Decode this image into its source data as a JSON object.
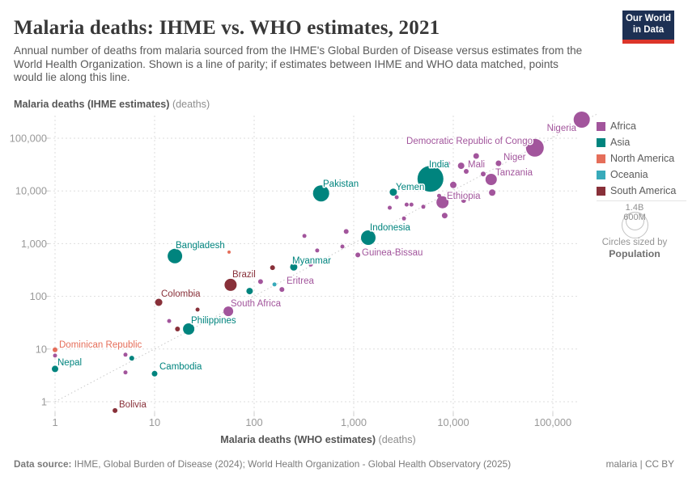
{
  "header": {
    "title": "Malaria deaths: IHME vs. WHO estimates, 2021",
    "subtitle": "Annual number of deaths from malaria sourced from the IHME's Global Burden of Disease versus estimates from the World Health Organization. Shown is a line of parity; if estimates between IHME and WHO data matched, points would lie along this line.",
    "logo": {
      "line1": "Our World",
      "line2": "in Data"
    }
  },
  "chart_data": {
    "type": "scatter",
    "title": "Malaria deaths: IHME vs. WHO estimates, 2021",
    "xlabel": "Malaria deaths (WHO estimates)",
    "xlabel_unit": "(deaths)",
    "ylabel": "Malaria deaths (IHME estimates)",
    "ylabel_unit": "(deaths)",
    "xscale": "log",
    "yscale": "log",
    "xlim": [
      1,
      300000
    ],
    "ylim": [
      0.6,
      300000
    ],
    "grid": true,
    "parity_line": true,
    "x_ticks": {
      "values": [
        1,
        10,
        100,
        1000,
        10000,
        100000
      ],
      "labels": [
        "1",
        "10",
        "100",
        "1,000",
        "10,000",
        "100,000"
      ]
    },
    "y_ticks": {
      "values": [
        1,
        10,
        100,
        1000,
        10000,
        100000
      ],
      "labels": [
        "1",
        "10",
        "100",
        "1,000",
        "10,000",
        "100,000"
      ]
    },
    "series": [
      {
        "name": "Africa",
        "color": "#a2559c",
        "points": [
          {
            "country": "Nigeria",
            "who": 195000,
            "ihme": 225000,
            "r": 10,
            "lbl": [
              712,
              162,
              "end",
              11.5
            ]
          },
          {
            "country": "Democratic Republic of Congo",
            "who": 66000,
            "ihme": 66000,
            "r": 11,
            "lbl": [
              658,
              178,
              "end",
              11.5
            ]
          },
          {
            "country": "Niger",
            "who": 28500,
            "ihme": 33500,
            "r": 3.5,
            "lbl": [
              622,
              198,
              "start",
              11.5
            ]
          },
          {
            "country": "Mali",
            "who": 12000,
            "ihme": 30000,
            "r": 4,
            "lbl": [
              578,
              207,
              "start",
              11.5
            ]
          },
          {
            "country": "Tanzania",
            "who": 24000,
            "ihme": 16500,
            "r": 7,
            "lbl": [
              612,
              217,
              "start",
              11.5
            ]
          },
          {
            "country": "Ethiopia",
            "who": 7800,
            "ihme": 6100,
            "r": 7.5,
            "lbl": [
              552,
              246,
              "start",
              11.5
            ]
          },
          {
            "country": "Guinea-Bissau",
            "who": 1100,
            "ihme": 610,
            "r": 3,
            "lbl": [
              447,
              316,
              "start",
              11.5
            ]
          },
          {
            "country": "Eritrea",
            "who": 190,
            "ihme": 135,
            "r": 3,
            "lbl": [
              354,
              351,
              "start",
              11.5
            ]
          },
          {
            "country": "South Africa",
            "who": 55,
            "ihme": 52,
            "r": 6,
            "lbl": [
              285,
              379,
              "start",
              11.5
            ]
          },
          {
            "who": 17000,
            "ihme": 46000,
            "r": 3.5
          },
          {
            "who": 8800,
            "ihme": 33000,
            "r": 3
          },
          {
            "who": 10000,
            "ihme": 13000,
            "r": 4
          },
          {
            "who": 13500,
            "ihme": 23500,
            "r": 3
          },
          {
            "who": 20000,
            "ihme": 21000,
            "r": 3
          },
          {
            "who": 24600,
            "ihme": 9300,
            "r": 4
          },
          {
            "who": 12700,
            "ihme": 6600,
            "r": 3
          },
          {
            "who": 7200,
            "ihme": 8100,
            "r": 2.5
          },
          {
            "who": 8200,
            "ihme": 3400,
            "r": 3.5
          },
          {
            "who": 2300,
            "ihme": 4800,
            "r": 2.5
          },
          {
            "who": 3400,
            "ihme": 5500,
            "r": 2.5
          },
          {
            "who": 3800,
            "ihme": 5500,
            "r": 2.5
          },
          {
            "who": 5000,
            "ihme": 5000,
            "r": 2.5
          },
          {
            "who": 3200,
            "ihme": 3000,
            "r": 2.5
          },
          {
            "who": 2700,
            "ihme": 7600,
            "r": 2.5
          },
          {
            "who": 840,
            "ihme": 1700,
            "r": 3
          },
          {
            "who": 320,
            "ihme": 1400,
            "r": 2.5
          },
          {
            "who": 430,
            "ihme": 740,
            "r": 2.5
          },
          {
            "who": 770,
            "ihme": 880,
            "r": 2.5
          },
          {
            "who": 530,
            "ihme": 500,
            "r": 2.5
          },
          {
            "who": 370,
            "ihme": 400,
            "r": 2.5
          },
          {
            "who": 116,
            "ihme": 190,
            "r": 3
          },
          {
            "who": 14,
            "ihme": 34,
            "r": 2.5
          },
          {
            "who": 5.1,
            "ihme": 7.8,
            "r": 2.5
          },
          {
            "who": 5.1,
            "ihme": 3.6,
            "r": 2.5
          },
          {
            "who": 1,
            "ihme": 7.5,
            "r": 2.5
          }
        ]
      },
      {
        "name": "Asia",
        "color": "#00847e",
        "points": [
          {
            "country": "India",
            "who": 5900,
            "ihme": 17000,
            "r": 16,
            "lbl": [
              530,
              207,
              "start",
              17
            ]
          },
          {
            "country": "Yemen",
            "who": 2500,
            "ihme": 9500,
            "r": 4.5,
            "lbl": [
              489,
              235,
              "start",
              11.5
            ]
          },
          {
            "country": "Pakistan",
            "who": 470,
            "ihme": 9000,
            "r": 10,
            "lbl": [
              399,
              231,
              "start",
              11.5
            ]
          },
          {
            "country": "Indonesia",
            "who": 1400,
            "ihme": 1300,
            "r": 9,
            "lbl": [
              457,
              285,
              "start",
              11.5
            ]
          },
          {
            "country": "Bangladesh",
            "who": 16,
            "ihme": 580,
            "r": 9,
            "lbl": [
              217,
              307,
              "start",
              11.5
            ]
          },
          {
            "country": "Myanmar",
            "who": 250,
            "ihme": 360,
            "r": 4.5,
            "lbl": [
              361,
              326,
              "start",
              11.5
            ]
          },
          {
            "country": "Philippines",
            "who": 22,
            "ihme": 24,
            "r": 7,
            "lbl": [
              236,
              400,
              "start",
              11.5
            ]
          },
          {
            "country": "Nepal",
            "who": 1,
            "ihme": 4.2,
            "r": 4,
            "lbl": [
              71,
              452,
              "start",
              11.5
            ]
          },
          {
            "country": "Cambodia",
            "who": 10,
            "ihme": 3.4,
            "r": 3.5,
            "lbl": [
              197,
              457,
              "start",
              11.5
            ]
          },
          {
            "who": 90,
            "ihme": 126,
            "r": 4
          },
          {
            "who": 5.9,
            "ihme": 6.7,
            "r": 3
          }
        ]
      },
      {
        "name": "North America",
        "color": "#e56e5a",
        "points": [
          {
            "country": "Dominican Republic",
            "who": 1,
            "ihme": 9.7,
            "r": 3,
            "lbl": [
              73,
              430,
              "start",
              11.5
            ]
          },
          {
            "who": 56,
            "ihme": 690,
            "r": 2
          }
        ]
      },
      {
        "name": "Oceania",
        "color": "#38aaba",
        "points": [
          {
            "who": 160,
            "ihme": 168,
            "r": 2.5
          }
        ]
      },
      {
        "name": "South America",
        "color": "#883039",
        "points": [
          {
            "country": "Brazil",
            "who": 58,
            "ihme": 165,
            "r": 7.5,
            "lbl": [
              287,
              343,
              "start",
              11.5
            ]
          },
          {
            "country": "Colombia",
            "who": 11,
            "ihme": 77,
            "r": 4.5,
            "lbl": [
              199,
              367,
              "start",
              11.5
            ]
          },
          {
            "country": "Bolivia",
            "who": 4,
            "ihme": 0.68,
            "r": 3,
            "lbl": [
              147,
              504,
              "start",
              11.5
            ]
          },
          {
            "who": 153,
            "ihme": 350,
            "r": 3
          },
          {
            "who": 27,
            "ihme": 56,
            "r": 2.5
          },
          {
            "who": 17,
            "ihme": 24,
            "r": 3
          }
        ]
      }
    ]
  },
  "legend": {
    "items": [
      {
        "label": "Africa",
        "color": "#a2559c"
      },
      {
        "label": "Asia",
        "color": "#00847e"
      },
      {
        "label": "North America",
        "color": "#e56e5a"
      },
      {
        "label": "Oceania",
        "color": "#38aaba"
      },
      {
        "label": "South America",
        "color": "#883039"
      }
    ],
    "size_legend": {
      "big_value": "1.4B",
      "small_value": "600M",
      "caption": "Circles sized by",
      "caption_bold": "Population"
    }
  },
  "footer": {
    "source_label": "Data source:",
    "source_text": " IHME, Global Burden of Disease (2024); World Health Organization - Global Health Observatory (2025)",
    "right_text": "malaria | CC BY"
  }
}
